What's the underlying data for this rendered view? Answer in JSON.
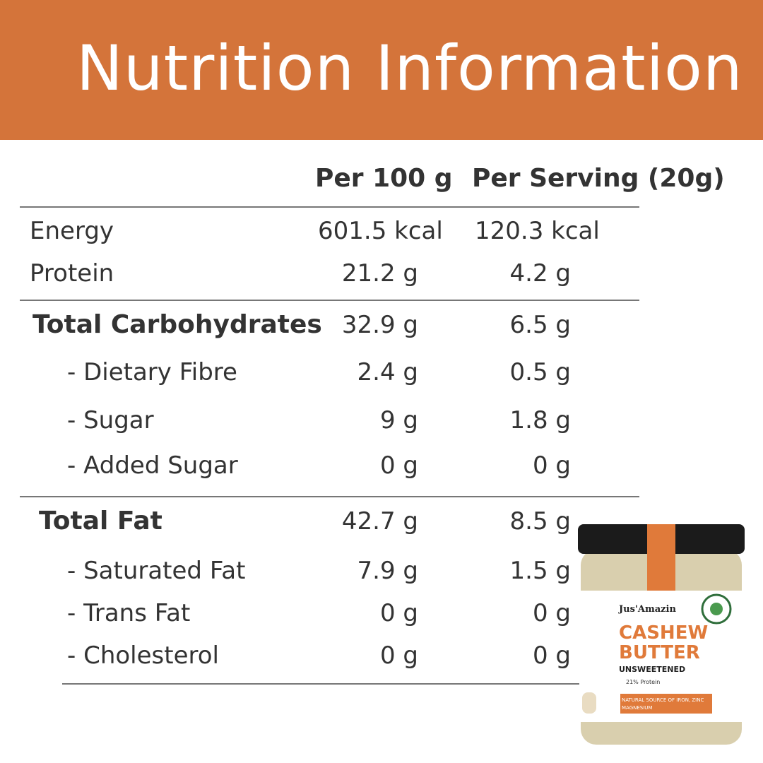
{
  "header": {
    "title": "Nutrition Information"
  },
  "table": {
    "columns": [
      "Per 100 g",
      "Per Serving (20g)"
    ],
    "rows": [
      [
        "Energy",
        "601.5 kcal",
        "120.3 kcal"
      ],
      [
        "Protein",
        "21.2 g",
        "4.2 g"
      ],
      [
        "Total Carbohydrates",
        "32.9 g",
        "6.5 g"
      ],
      [
        "- Dietary Fibre",
        "2.4 g",
        "0.5 g"
      ],
      [
        "- Sugar",
        "9 g",
        "1.8 g"
      ],
      [
        "- Added Sugar",
        "0 g",
        "0 g"
      ],
      [
        "Total Fat",
        "42.7 g",
        "8.5 g"
      ],
      [
        "- Saturated Fat",
        "7.9 g",
        "1.5 g"
      ],
      [
        "- Trans Fat",
        "0 g",
        "0 g"
      ],
      [
        "- Cholesterol",
        "0 g",
        "0 g"
      ]
    ]
  },
  "product": {
    "brand": "Jus'Amazin",
    "name_line1": "CASHEW",
    "name_line2": "BUTTER",
    "variant": "UNSWEETENED",
    "claim": "21% Protein",
    "strip_line1": "NATURAL SOURCE OF IRON, ZINC",
    "strip_line2": "MAGNESIUM"
  }
}
